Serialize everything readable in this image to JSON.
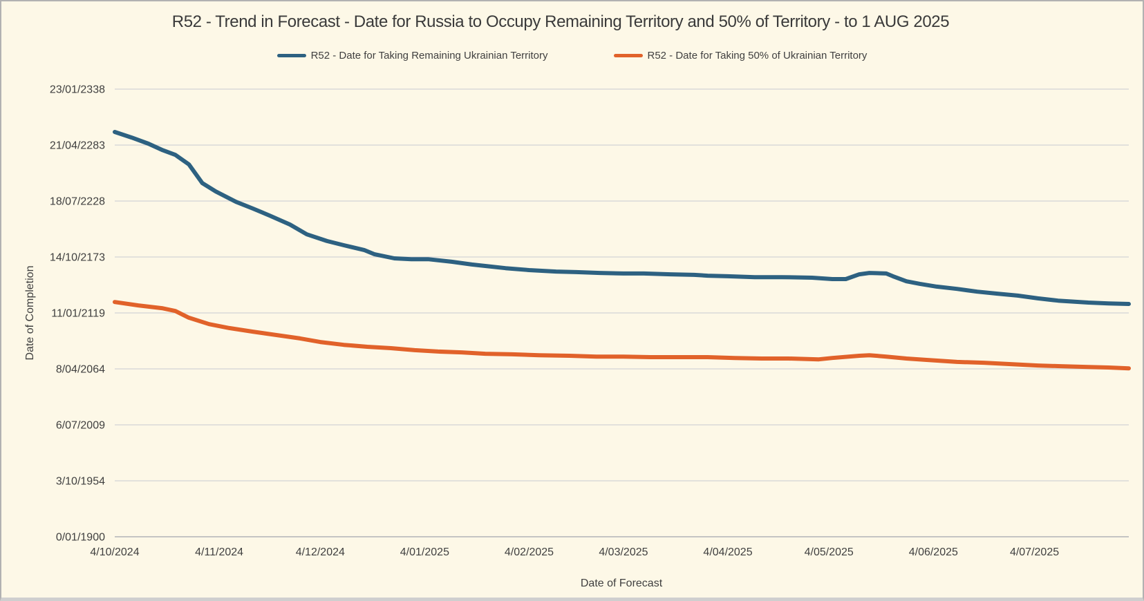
{
  "colors": {
    "background": "#fdf8e7",
    "gridline": "#d9d9d9",
    "axis_line": "#bfbfbf",
    "text": "#3f3f3f",
    "series_blue": "#2d6181",
    "series_orange": "#e1622a"
  },
  "chart_data": {
    "type": "line",
    "title": "R52 - Trend in Forecast - Date for Russia to Occupy Remaining Territory and 50% of Territory - to 1 AUG 2025",
    "xlabel": "Date of Forecast",
    "ylabel": "Date of Completion",
    "grid": true,
    "legend_position": "top-center",
    "y_axis": {
      "unit": "date of completion (serial days since 0/01/1900)",
      "min": 0,
      "max": 160000,
      "tick_step": 20000,
      "ticks": [
        {
          "label": "23/01/2338",
          "value": 160000
        },
        {
          "label": "21/04/2283",
          "value": 140000
        },
        {
          "label": "18/07/2228",
          "value": 120000
        },
        {
          "label": "14/10/2173",
          "value": 100000
        },
        {
          "label": "11/01/2119",
          "value": 80000
        },
        {
          "label": "8/04/2064",
          "value": 60000
        },
        {
          "label": "6/07/2009",
          "value": 40000
        },
        {
          "label": "3/10/1954",
          "value": 20000
        },
        {
          "label": "0/01/1900",
          "value": 0
        }
      ]
    },
    "x_axis": {
      "unit": "date of forecast (days since 4/10/2024, plotted to 1/08/2025)",
      "min": 0,
      "max": 301,
      "ticks": [
        {
          "label": "4/10/2024",
          "day": 0
        },
        {
          "label": "4/11/2024",
          "day": 31
        },
        {
          "label": "4/12/2024",
          "day": 61
        },
        {
          "label": "4/01/2025",
          "day": 92
        },
        {
          "label": "4/02/2025",
          "day": 123
        },
        {
          "label": "4/03/2025",
          "day": 151
        },
        {
          "label": "4/04/2025",
          "day": 182
        },
        {
          "label": "4/05/2025",
          "day": 212
        },
        {
          "label": "4/06/2025",
          "day": 243
        },
        {
          "label": "4/07/2025",
          "day": 273
        }
      ]
    },
    "series": [
      {
        "name": "R52 - Date for Taking Remaining Ukrainian Territory",
        "color": "#2d6181",
        "approx_start_completion_year": 2296,
        "approx_end_completion_year": 2128,
        "points": [
          [
            0,
            144700
          ],
          [
            5,
            142700
          ],
          [
            10,
            140500
          ],
          [
            14,
            138300
          ],
          [
            18,
            136500
          ],
          [
            22,
            133100
          ],
          [
            26,
            126400
          ],
          [
            30,
            123400
          ],
          [
            36,
            119700
          ],
          [
            41,
            117300
          ],
          [
            46,
            114800
          ],
          [
            52,
            111600
          ],
          [
            57,
            108100
          ],
          [
            63,
            105700
          ],
          [
            68,
            104200
          ],
          [
            74,
            102500
          ],
          [
            77,
            101000
          ],
          [
            83,
            99500
          ],
          [
            88,
            99200
          ],
          [
            93,
            99200
          ],
          [
            100,
            98300
          ],
          [
            106,
            97300
          ],
          [
            110,
            96800
          ],
          [
            116,
            96000
          ],
          [
            123,
            95300
          ],
          [
            131,
            94800
          ],
          [
            137,
            94600
          ],
          [
            144,
            94300
          ],
          [
            151,
            94100
          ],
          [
            157,
            94100
          ],
          [
            165,
            93800
          ],
          [
            172,
            93600
          ],
          [
            176,
            93300
          ],
          [
            182,
            93100
          ],
          [
            190,
            92800
          ],
          [
            198,
            92800
          ],
          [
            207,
            92600
          ],
          [
            213,
            92100
          ],
          [
            217,
            92100
          ],
          [
            221,
            93800
          ],
          [
            224,
            94300
          ],
          [
            229,
            94100
          ],
          [
            231,
            93100
          ],
          [
            235,
            91300
          ],
          [
            239,
            90400
          ],
          [
            244,
            89400
          ],
          [
            250,
            88600
          ],
          [
            256,
            87600
          ],
          [
            262,
            86900
          ],
          [
            268,
            86200
          ],
          [
            274,
            85200
          ],
          [
            280,
            84400
          ],
          [
            289,
            83700
          ],
          [
            295,
            83400
          ],
          [
            301,
            83200
          ]
        ]
      },
      {
        "name": "R52 - Date for Taking  50% of Ukrainian Territory",
        "color": "#e1622a",
        "approx_start_completion_year": 2130,
        "approx_end_completion_year": 2065,
        "points": [
          [
            0,
            83900
          ],
          [
            7,
            82700
          ],
          [
            14,
            81700
          ],
          [
            18,
            80700
          ],
          [
            22,
            78300
          ],
          [
            28,
            76000
          ],
          [
            34,
            74600
          ],
          [
            41,
            73300
          ],
          [
            48,
            72100
          ],
          [
            55,
            70900
          ],
          [
            61,
            69600
          ],
          [
            68,
            68600
          ],
          [
            75,
            67900
          ],
          [
            82,
            67400
          ],
          [
            89,
            66700
          ],
          [
            96,
            66200
          ],
          [
            103,
            65900
          ],
          [
            110,
            65400
          ],
          [
            118,
            65200
          ],
          [
            126,
            64900
          ],
          [
            135,
            64700
          ],
          [
            143,
            64400
          ],
          [
            151,
            64400
          ],
          [
            159,
            64200
          ],
          [
            168,
            64200
          ],
          [
            176,
            64200
          ],
          [
            184,
            63900
          ],
          [
            192,
            63700
          ],
          [
            200,
            63700
          ],
          [
            209,
            63400
          ],
          [
            213,
            63900
          ],
          [
            221,
            64700
          ],
          [
            224,
            64900
          ],
          [
            229,
            64400
          ],
          [
            235,
            63700
          ],
          [
            241,
            63200
          ],
          [
            250,
            62500
          ],
          [
            258,
            62200
          ],
          [
            266,
            61700
          ],
          [
            274,
            61200
          ],
          [
            280,
            61000
          ],
          [
            289,
            60700
          ],
          [
            295,
            60500
          ],
          [
            301,
            60200
          ]
        ]
      }
    ]
  }
}
